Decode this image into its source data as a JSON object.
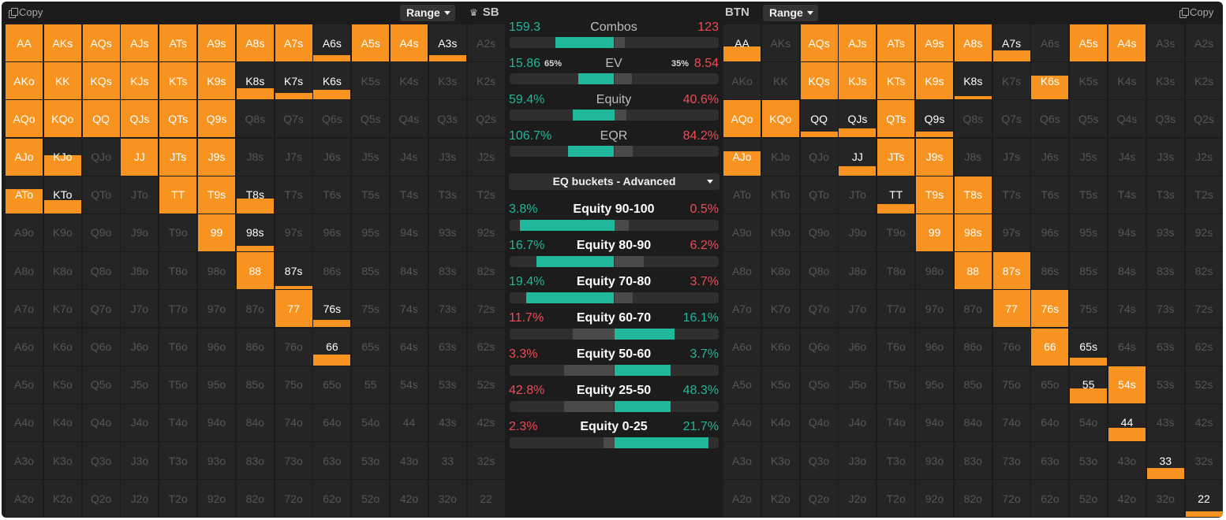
{
  "left": {
    "copy_label": "Copy",
    "range_label": "Range",
    "position": "SB",
    "cells": [
      [
        "AA",
        "AKs",
        "AQs",
        "AJs",
        "ATs",
        "A9s",
        "A8s",
        "A7s",
        "A6s",
        "A5s",
        "A4s",
        "A3s",
        "A2s"
      ],
      [
        "AKo",
        "KK",
        "KQs",
        "KJs",
        "KTs",
        "K9s",
        "K8s",
        "K7s",
        "K6s",
        "K5s",
        "K4s",
        "K3s",
        "K2s"
      ],
      [
        "AQo",
        "KQo",
        "QQ",
        "QJs",
        "QTs",
        "Q9s",
        "Q8s",
        "Q7s",
        "Q6s",
        "Q5s",
        "Q4s",
        "Q3s",
        "Q2s"
      ],
      [
        "AJo",
        "KJo",
        "QJo",
        "JJ",
        "JTs",
        "J9s",
        "J8s",
        "J7s",
        "J6s",
        "J5s",
        "J4s",
        "J3s",
        "J2s"
      ],
      [
        "ATo",
        "KTo",
        "QTo",
        "JTo",
        "TT",
        "T9s",
        "T8s",
        "T7s",
        "T6s",
        "T5s",
        "T4s",
        "T3s",
        "T2s"
      ],
      [
        "A9o",
        "K9o",
        "Q9o",
        "J9o",
        "T9o",
        "99",
        "98s",
        "97s",
        "96s",
        "95s",
        "94s",
        "93s",
        "92s"
      ],
      [
        "A8o",
        "K8o",
        "Q8o",
        "J8o",
        "T8o",
        "98o",
        "88",
        "87s",
        "86s",
        "85s",
        "84s",
        "83s",
        "82s"
      ],
      [
        "A7o",
        "K7o",
        "Q7o",
        "J7o",
        "T7o",
        "97o",
        "87o",
        "77",
        "76s",
        "75s",
        "74s",
        "73s",
        "72s"
      ],
      [
        "A6o",
        "K6o",
        "Q6o",
        "J6o",
        "T6o",
        "96o",
        "86o",
        "76o",
        "66",
        "65s",
        "64s",
        "63s",
        "62s"
      ],
      [
        "A5o",
        "K5o",
        "Q5o",
        "J5o",
        "T5o",
        "95o",
        "85o",
        "75o",
        "65o",
        "55",
        "54s",
        "53s",
        "52s"
      ],
      [
        "A4o",
        "K4o",
        "Q4o",
        "J4o",
        "T4o",
        "94o",
        "84o",
        "74o",
        "64o",
        "54o",
        "44",
        "43s",
        "42s"
      ],
      [
        "A3o",
        "K3o",
        "Q3o",
        "J3o",
        "T3o",
        "93o",
        "83o",
        "73o",
        "63o",
        "53o",
        "43o",
        "33",
        "32s"
      ],
      [
        "A2o",
        "K2o",
        "Q2o",
        "J2o",
        "T2o",
        "92o",
        "82o",
        "72o",
        "62o",
        "52o",
        "42o",
        "32o",
        "22"
      ]
    ],
    "frequencies": [
      [
        1,
        1,
        1,
        1,
        1,
        1,
        1,
        1,
        0.17,
        1,
        1,
        0.17,
        0
      ],
      [
        1,
        1,
        1,
        1,
        1,
        1,
        0.3,
        0.17,
        0.25,
        0,
        0,
        0,
        0
      ],
      [
        1,
        1,
        1,
        1,
        1,
        1,
        0,
        0,
        0,
        0,
        0,
        0,
        0
      ],
      [
        1,
        0.55,
        0,
        1,
        1,
        1,
        0,
        0,
        0,
        0,
        0,
        0,
        0
      ],
      [
        0.65,
        0.35,
        0,
        0,
        1,
        1,
        0.4,
        0,
        0,
        0,
        0,
        0,
        0
      ],
      [
        0,
        0,
        0,
        0,
        0,
        1,
        0.15,
        0,
        0,
        0,
        0,
        0,
        0
      ],
      [
        0,
        0,
        0,
        0,
        0,
        0,
        1,
        0.08,
        0,
        0,
        0,
        0,
        0
      ],
      [
        0,
        0,
        0,
        0,
        0,
        0,
        0,
        1,
        0.2,
        0,
        0,
        0,
        0
      ],
      [
        0,
        0,
        0,
        0,
        0,
        0,
        0,
        0,
        0.28,
        0,
        0,
        0,
        0
      ],
      [
        0,
        0,
        0,
        0,
        0,
        0,
        0,
        0,
        0,
        0,
        0,
        0,
        0
      ],
      [
        0,
        0,
        0,
        0,
        0,
        0,
        0,
        0,
        0,
        0,
        0,
        0,
        0
      ],
      [
        0,
        0,
        0,
        0,
        0,
        0,
        0,
        0,
        0,
        0,
        0,
        0,
        0
      ],
      [
        0,
        0,
        0,
        0,
        0,
        0,
        0,
        0,
        0,
        0,
        0,
        0,
        0
      ]
    ]
  },
  "right": {
    "copy_label": "Copy",
    "range_label": "Range",
    "position": "BTN",
    "cells": [
      [
        "AA",
        "AKs",
        "AQs",
        "AJs",
        "ATs",
        "A9s",
        "A8s",
        "A7s",
        "A6s",
        "A5s",
        "A4s",
        "A3s",
        "A2s"
      ],
      [
        "AKo",
        "KK",
        "KQs",
        "KJs",
        "KTs",
        "K9s",
        "K8s",
        "K7s",
        "K6s",
        "K5s",
        "K4s",
        "K3s",
        "K2s"
      ],
      [
        "AQo",
        "KQo",
        "QQ",
        "QJs",
        "QTs",
        "Q9s",
        "Q8s",
        "Q7s",
        "Q6s",
        "Q5s",
        "Q4s",
        "Q3s",
        "Q2s"
      ],
      [
        "AJo",
        "KJo",
        "QJo",
        "JJ",
        "JTs",
        "J9s",
        "J8s",
        "J7s",
        "J6s",
        "J5s",
        "J4s",
        "J3s",
        "J2s"
      ],
      [
        "ATo",
        "KTo",
        "QTo",
        "JTo",
        "TT",
        "T9s",
        "T8s",
        "T7s",
        "T6s",
        "T5s",
        "T4s",
        "T3s",
        "T2s"
      ],
      [
        "A9o",
        "K9o",
        "Q9o",
        "J9o",
        "T9o",
        "99",
        "98s",
        "97s",
        "96s",
        "95s",
        "94s",
        "93s",
        "92s"
      ],
      [
        "A8o",
        "K8o",
        "Q8o",
        "J8o",
        "T8o",
        "98o",
        "88",
        "87s",
        "86s",
        "85s",
        "84s",
        "83s",
        "82s"
      ],
      [
        "A7o",
        "K7o",
        "Q7o",
        "J7o",
        "T7o",
        "97o",
        "87o",
        "77",
        "76s",
        "75s",
        "74s",
        "73s",
        "72s"
      ],
      [
        "A6o",
        "K6o",
        "Q6o",
        "J6o",
        "T6o",
        "96o",
        "86o",
        "76o",
        "66",
        "65s",
        "64s",
        "63s",
        "62s"
      ],
      [
        "A5o",
        "K5o",
        "Q5o",
        "J5o",
        "T5o",
        "95o",
        "85o",
        "75o",
        "65o",
        "55",
        "54s",
        "53s",
        "52s"
      ],
      [
        "A4o",
        "K4o",
        "Q4o",
        "J4o",
        "T4o",
        "94o",
        "84o",
        "74o",
        "64o",
        "54o",
        "44",
        "43s",
        "42s"
      ],
      [
        "A3o",
        "K3o",
        "Q3o",
        "J3o",
        "T3o",
        "93o",
        "83o",
        "73o",
        "63o",
        "53o",
        "43o",
        "33",
        "32s"
      ],
      [
        "A2o",
        "K2o",
        "Q2o",
        "J2o",
        "T2o",
        "92o",
        "82o",
        "72o",
        "62o",
        "52o",
        "42o",
        "32o",
        "22"
      ]
    ],
    "frequencies": [
      [
        0.4,
        0,
        1,
        1,
        1,
        1,
        1,
        0.3,
        0,
        1,
        1,
        0,
        0
      ],
      [
        0,
        0,
        1,
        1,
        1,
        1,
        0.1,
        0,
        0.65,
        0,
        0,
        0,
        0
      ],
      [
        1,
        1,
        0.15,
        0.25,
        1,
        0.15,
        0,
        0,
        0,
        0,
        0,
        0,
        0
      ],
      [
        0.65,
        0,
        0,
        0.25,
        1,
        1,
        0,
        0,
        0,
        0,
        0,
        0,
        0
      ],
      [
        0,
        0,
        0,
        0,
        0.25,
        1,
        1,
        0,
        0,
        0,
        0,
        0,
        0
      ],
      [
        0,
        0,
        0,
        0,
        0,
        1,
        1,
        0,
        0,
        0,
        0,
        0,
        0
      ],
      [
        0,
        0,
        0,
        0,
        0,
        0,
        1,
        1,
        0,
        0,
        0,
        0,
        0
      ],
      [
        0,
        0,
        0,
        0,
        0,
        0,
        0,
        1,
        1,
        0,
        0,
        0,
        0
      ],
      [
        0,
        0,
        0,
        0,
        0,
        0,
        0,
        0,
        1,
        0.2,
        0,
        0,
        0
      ],
      [
        0,
        0,
        0,
        0,
        0,
        0,
        0,
        0,
        0,
        0.4,
        1,
        0,
        0
      ],
      [
        0,
        0,
        0,
        0,
        0,
        0,
        0,
        0,
        0,
        0,
        0.35,
        0,
        0
      ],
      [
        0,
        0,
        0,
        0,
        0,
        0,
        0,
        0,
        0,
        0,
        0,
        0.3,
        0
      ],
      [
        0,
        0,
        0,
        0,
        0,
        0,
        0,
        0,
        0,
        0,
        0,
        0,
        0.15
      ]
    ]
  },
  "colors": {
    "green": "#1fb89a",
    "red": "#f04a57",
    "orange": "#f7931e",
    "bar_gray": "#4a4a4a"
  },
  "stats": [
    {
      "label": "Combos",
      "left": "159.3",
      "right": "123",
      "left_color": "green",
      "right_color": "red",
      "bar_left": 0.22,
      "bar_right": 0.32,
      "style": "muted"
    },
    {
      "label": "EV",
      "left": "15.86",
      "right": "8.54",
      "left_pct": "65%",
      "right_pct": "35%",
      "left_color": "green",
      "right_color": "red",
      "bar_left": 0.33,
      "bar_right": 0.5,
      "style": "muted"
    },
    {
      "label": "Equity",
      "left": "59.4%",
      "right": "40.6%",
      "left_color": "green",
      "right_color": "red",
      "bar_left": 0.3,
      "bar_right": 0.42,
      "style": "muted"
    },
    {
      "label": "EQR",
      "left": "106.7%",
      "right": "84.2%",
      "left_color": "green",
      "right_color": "red",
      "bar_left": 0.28,
      "bar_right": 0.46,
      "style": "muted"
    }
  ],
  "dropdown_label": "EQ buckets - Advanced",
  "buckets": [
    {
      "label": "Equity 90-100",
      "left": "3.8%",
      "right": "0.5%",
      "left_color": "green",
      "right_color": "red",
      "green_side": "left",
      "green_len": 0.45,
      "gray_len": 0.07
    },
    {
      "label": "Equity 80-90",
      "left": "16.7%",
      "right": "6.2%",
      "left_color": "green",
      "right_color": "red",
      "green_side": "left",
      "green_len": 0.37,
      "gray_len": 0.14
    },
    {
      "label": "Equity 70-80",
      "left": "19.4%",
      "right": "3.7%",
      "left_color": "green",
      "right_color": "red",
      "green_side": "left",
      "green_len": 0.42,
      "gray_len": 0.09
    },
    {
      "label": "Equity 60-70",
      "left": "11.7%",
      "right": "16.1%",
      "left_color": "red",
      "right_color": "green",
      "green_side": "right",
      "green_len": 0.29,
      "gray_len": 0.2
    },
    {
      "label": "Equity 50-60",
      "left": "3.3%",
      "right": "3.7%",
      "left_color": "red",
      "right_color": "green",
      "green_side": "right",
      "green_len": 0.27,
      "gray_len": 0.24
    },
    {
      "label": "Equity 25-50",
      "left": "42.8%",
      "right": "48.3%",
      "left_color": "red",
      "right_color": "green",
      "green_side": "right",
      "green_len": 0.27,
      "gray_len": 0.24
    },
    {
      "label": "Equity 0-25",
      "left": "2.3%",
      "right": "21.7%",
      "left_color": "red",
      "right_color": "green",
      "green_side": "right",
      "green_len": 0.45,
      "gray_len": 0.05
    }
  ]
}
